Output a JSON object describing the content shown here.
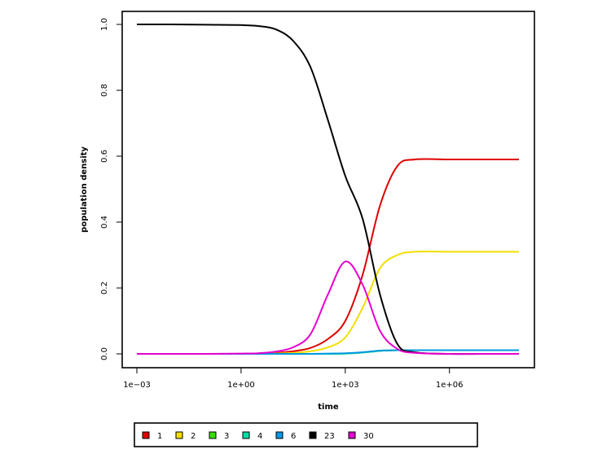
{
  "chart_data": {
    "type": "line",
    "title": "",
    "xlabel": "time",
    "ylabel": "population density",
    "x_scale": "log10",
    "xlim": [
      0.001,
      100000000
    ],
    "ylim": [
      0,
      1
    ],
    "grid": false,
    "x_ticks": [
      {
        "value": 0.001,
        "label": "1e−03"
      },
      {
        "value": 1,
        "label": "1e+00"
      },
      {
        "value": 1000,
        "label": "1e+03"
      },
      {
        "value": 1000000,
        "label": "1e+06"
      }
    ],
    "y_ticks": [
      {
        "value": 0.0,
        "label": "0.0"
      },
      {
        "value": 0.2,
        "label": "0.2"
      },
      {
        "value": 0.4,
        "label": "0.4"
      },
      {
        "value": 0.6,
        "label": "0.6"
      },
      {
        "value": 0.8,
        "label": "0.8"
      },
      {
        "value": 1.0,
        "label": "1.0"
      }
    ],
    "legend_position": "bottom",
    "x": [
      0.001,
      0.01,
      0.1,
      1,
      3.16,
      10,
      31.6,
      100,
      316,
      1000,
      3162,
      10000,
      31623,
      100000,
      1000000,
      10000000,
      100000000
    ],
    "series": [
      {
        "name": "1",
        "color": "#DF0000",
        "values": [
          0,
          0,
          0,
          0,
          0.001,
          0.003,
          0.008,
          0.018,
          0.045,
          0.1,
          0.24,
          0.45,
          0.57,
          0.59,
          0.59,
          0.59,
          0.59
        ]
      },
      {
        "name": "2",
        "color": "#F2DE00",
        "values": [
          0,
          0,
          0,
          0,
          0,
          0.001,
          0.003,
          0.008,
          0.02,
          0.05,
          0.14,
          0.26,
          0.3,
          0.31,
          0.31,
          0.31,
          0.31
        ]
      },
      {
        "name": "3",
        "color": "#33E200",
        "values": [
          0,
          0,
          0,
          0,
          0,
          0,
          0,
          0,
          0,
          0.001,
          0.004,
          0.009,
          0.011,
          0.011,
          0.011,
          0.011,
          0.011
        ]
      },
      {
        "name": "4",
        "color": "#00DFA5",
        "values": [
          0,
          0,
          0,
          0,
          0,
          0,
          0,
          0,
          0,
          0.001,
          0.004,
          0.009,
          0.011,
          0.011,
          0.011,
          0.011,
          0.011
        ]
      },
      {
        "name": "6",
        "color": "#0098E0",
        "values": [
          0,
          0,
          0,
          0,
          0,
          0,
          0,
          0,
          0.001,
          0.002,
          0.005,
          0.01,
          0.011,
          0.011,
          0.011,
          0.011,
          0.011
        ]
      },
      {
        "name": "23",
        "color": "#000000",
        "values": [
          1.0,
          1.0,
          0.999,
          0.998,
          0.995,
          0.985,
          0.95,
          0.87,
          0.71,
          0.54,
          0.41,
          0.18,
          0.03,
          0.005,
          0,
          0,
          0
        ]
      },
      {
        "name": "30",
        "color": "#E600D0",
        "values": [
          0,
          0,
          0,
          0.001,
          0.002,
          0.007,
          0.02,
          0.06,
          0.18,
          0.28,
          0.21,
          0.07,
          0.015,
          0.003,
          0,
          0,
          0
        ]
      }
    ]
  }
}
